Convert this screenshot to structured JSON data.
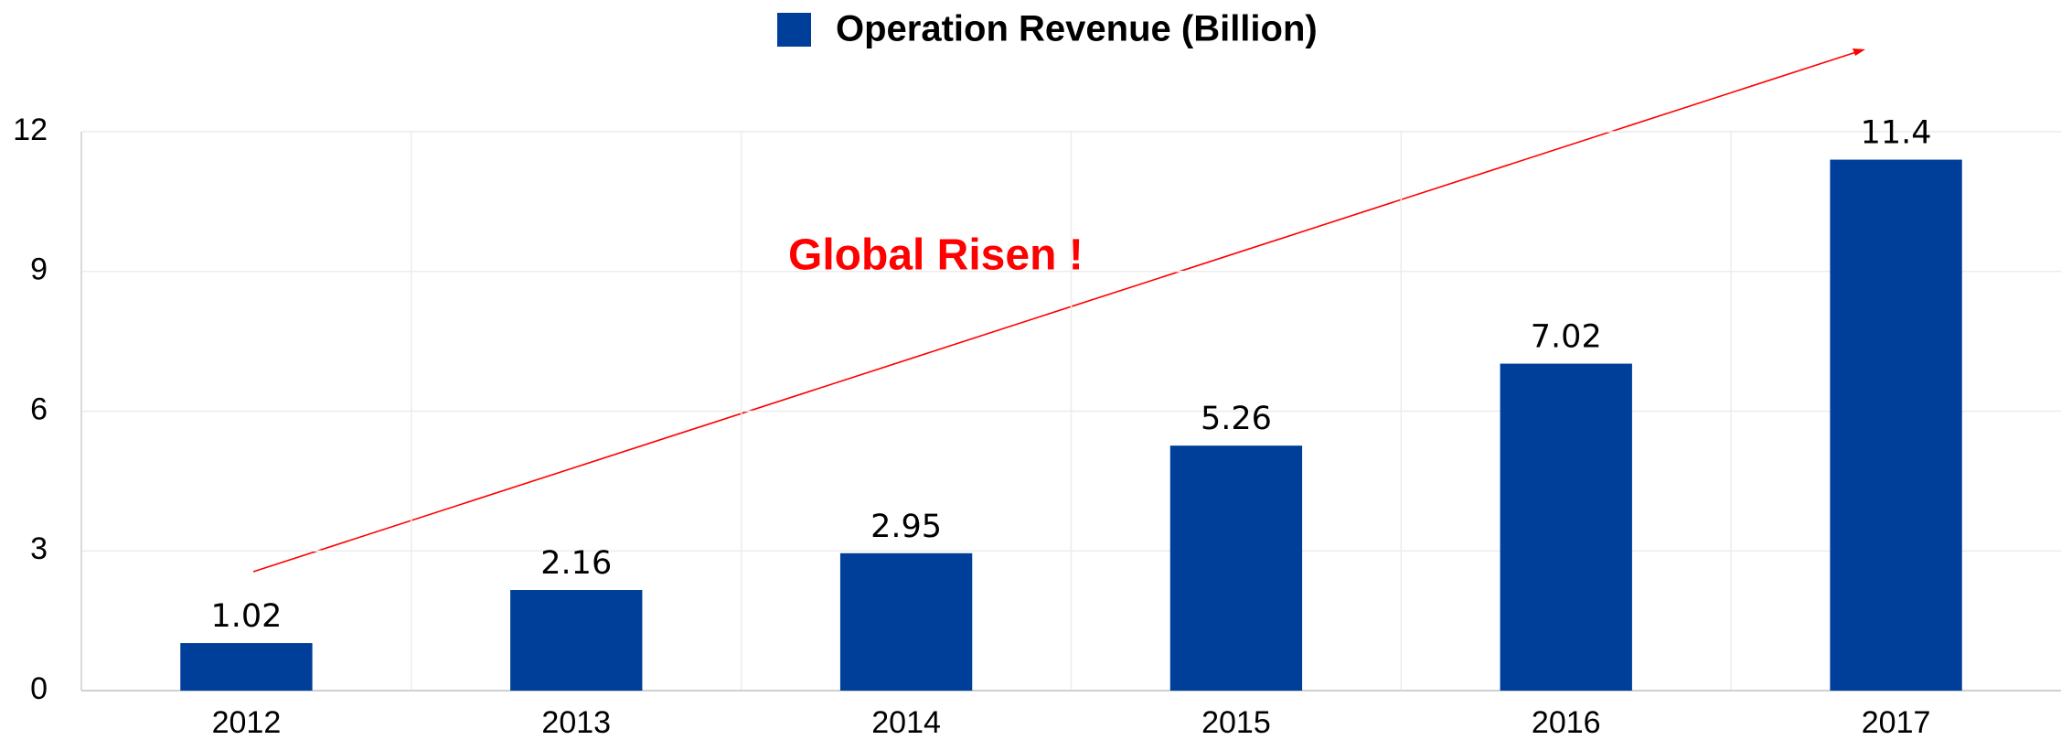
{
  "chart_data": {
    "type": "bar",
    "categories": [
      "2012",
      "2013",
      "2014",
      "2015",
      "2016",
      "2017"
    ],
    "series": [
      {
        "name": "Operation Revenue (Billion)",
        "color": "#003f99",
        "values": [
          1.02,
          2.16,
          2.95,
          5.26,
          7.02,
          11.4
        ]
      }
    ],
    "ylim": [
      0,
      12
    ],
    "yticks": [
      0,
      3,
      6,
      9,
      12
    ],
    "grid": true,
    "legend": "top",
    "annotation": "Global Risen !"
  }
}
